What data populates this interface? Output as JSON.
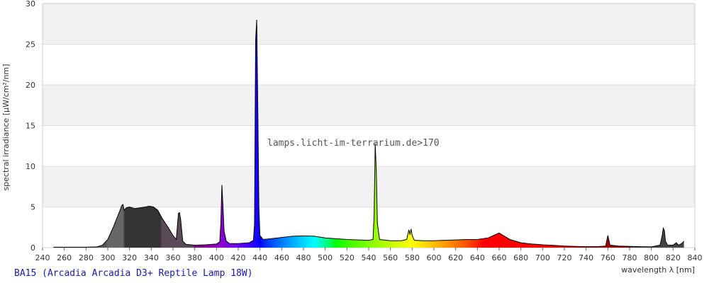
{
  "chart_data": {
    "type": "area",
    "ylabel": "spectral irradiance [µW/cm²/nm]",
    "xlabel": "wavelength λ [nm]",
    "caption": "BA15 (Arcadia Arcadia D3+ Reptile Lamp 18W)",
    "annotation": "lamps.licht-im-terrarium.de>170",
    "xlim": [
      240,
      840
    ],
    "ylim": [
      0,
      30
    ],
    "xticks": [
      240,
      260,
      280,
      300,
      320,
      340,
      360,
      380,
      400,
      420,
      440,
      460,
      480,
      500,
      520,
      540,
      560,
      580,
      600,
      620,
      640,
      660,
      680,
      700,
      720,
      740,
      760,
      780,
      800,
      820,
      840
    ],
    "yticks": [
      0,
      5,
      10,
      15,
      20,
      25,
      30
    ],
    "grid": true,
    "x": [
      250,
      260,
      270,
      280,
      290,
      295,
      300,
      305,
      308,
      311,
      313,
      314,
      315,
      317,
      320,
      325,
      330,
      335,
      338,
      342,
      346,
      350,
      355,
      360,
      363,
      365,
      366,
      367,
      369,
      372,
      380,
      390,
      400,
      403,
      404,
      405,
      406,
      407,
      409,
      412,
      420,
      430,
      434,
      435,
      436,
      437,
      438,
      439,
      440,
      443,
      450,
      460,
      470,
      480,
      490,
      500,
      510,
      520,
      530,
      540,
      544,
      545,
      546,
      547,
      548,
      550,
      560,
      570,
      575,
      577,
      578,
      579,
      580,
      582,
      590,
      600,
      610,
      620,
      630,
      640,
      650,
      655,
      660,
      665,
      670,
      680,
      690,
      700,
      710,
      720,
      730,
      740,
      750,
      758,
      760,
      762,
      770,
      780,
      790,
      800,
      808,
      810,
      811,
      812,
      813,
      815,
      820,
      823,
      825,
      828,
      830
    ],
    "values": [
      0.05,
      0.05,
      0.05,
      0.05,
      0.1,
      0.3,
      1.0,
      2.5,
      3.5,
      4.5,
      5.2,
      5.3,
      4.6,
      4.9,
      5.0,
      4.8,
      4.9,
      5.0,
      5.1,
      5.0,
      4.6,
      3.6,
      2.6,
      1.5,
      1.0,
      4.2,
      4.3,
      3.5,
      0.8,
      0.4,
      0.3,
      0.35,
      0.45,
      0.7,
      3,
      7.7,
      5,
      2,
      0.8,
      0.5,
      0.5,
      0.6,
      0.9,
      3,
      25.5,
      28,
      17.5,
      5,
      1.5,
      1.0,
      1.1,
      1.25,
      1.4,
      1.45,
      1.4,
      1.2,
      1.1,
      1.0,
      0.95,
      0.9,
      1.0,
      4,
      12.8,
      9.5,
      3,
      1.0,
      0.85,
      0.85,
      1.0,
      2.2,
      1.6,
      2.3,
      1.5,
      0.9,
      0.85,
      0.85,
      0.9,
      0.95,
      1.0,
      1.0,
      1.2,
      1.5,
      1.8,
      1.4,
      1.0,
      0.6,
      0.45,
      0.35,
      0.28,
      0.2,
      0.15,
      0.12,
      0.12,
      0.2,
      1.5,
      0.3,
      0.2,
      0.15,
      0.12,
      0.1,
      0.3,
      1.5,
      2.4,
      2.1,
      0.8,
      0.3,
      0.3,
      0.6,
      0.3,
      0.5,
      0.8
    ]
  }
}
